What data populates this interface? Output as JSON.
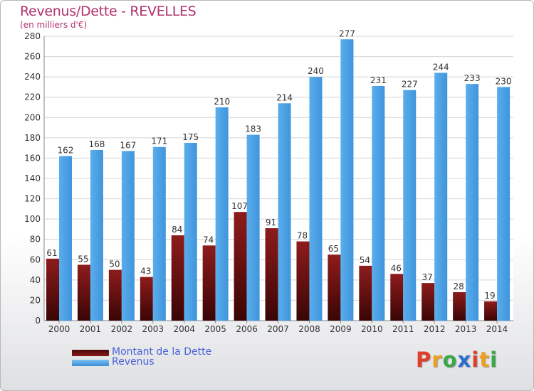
{
  "header": {
    "title": "Revenus/Dette - REVELLES",
    "subtitle": "(en milliers d'€)"
  },
  "chart_data": {
    "type": "bar",
    "categories": [
      "2000",
      "2001",
      "2002",
      "2003",
      "2004",
      "2005",
      "2006",
      "2007",
      "2008",
      "2009",
      "2010",
      "2011",
      "2012",
      "2013",
      "2014"
    ],
    "series": [
      {
        "name": "Montant de la Dette",
        "color": "#7a1212",
        "values": [
          61,
          55,
          50,
          43,
          84,
          74,
          107,
          91,
          78,
          65,
          54,
          46,
          37,
          28,
          19
        ]
      },
      {
        "name": "Revenus",
        "color": "#4a9fe3",
        "values": [
          162,
          168,
          167,
          171,
          175,
          210,
          183,
          214,
          240,
          277,
          231,
          227,
          244,
          233,
          230
        ]
      }
    ],
    "ylim": [
      0,
      280
    ],
    "yticks": [
      0,
      20,
      40,
      60,
      80,
      100,
      120,
      140,
      160,
      180,
      200,
      220,
      240,
      260,
      280
    ],
    "grid": true,
    "legend": "bottom-left"
  },
  "logo": {
    "letters": [
      "P",
      "r",
      "o",
      "x",
      "i",
      "t",
      "i"
    ],
    "colors": [
      "#e0402a",
      "#f0a020",
      "#3aa84a",
      "#2a6fd0",
      "#e0402a",
      "#f0a020",
      "#3aa84a"
    ]
  }
}
